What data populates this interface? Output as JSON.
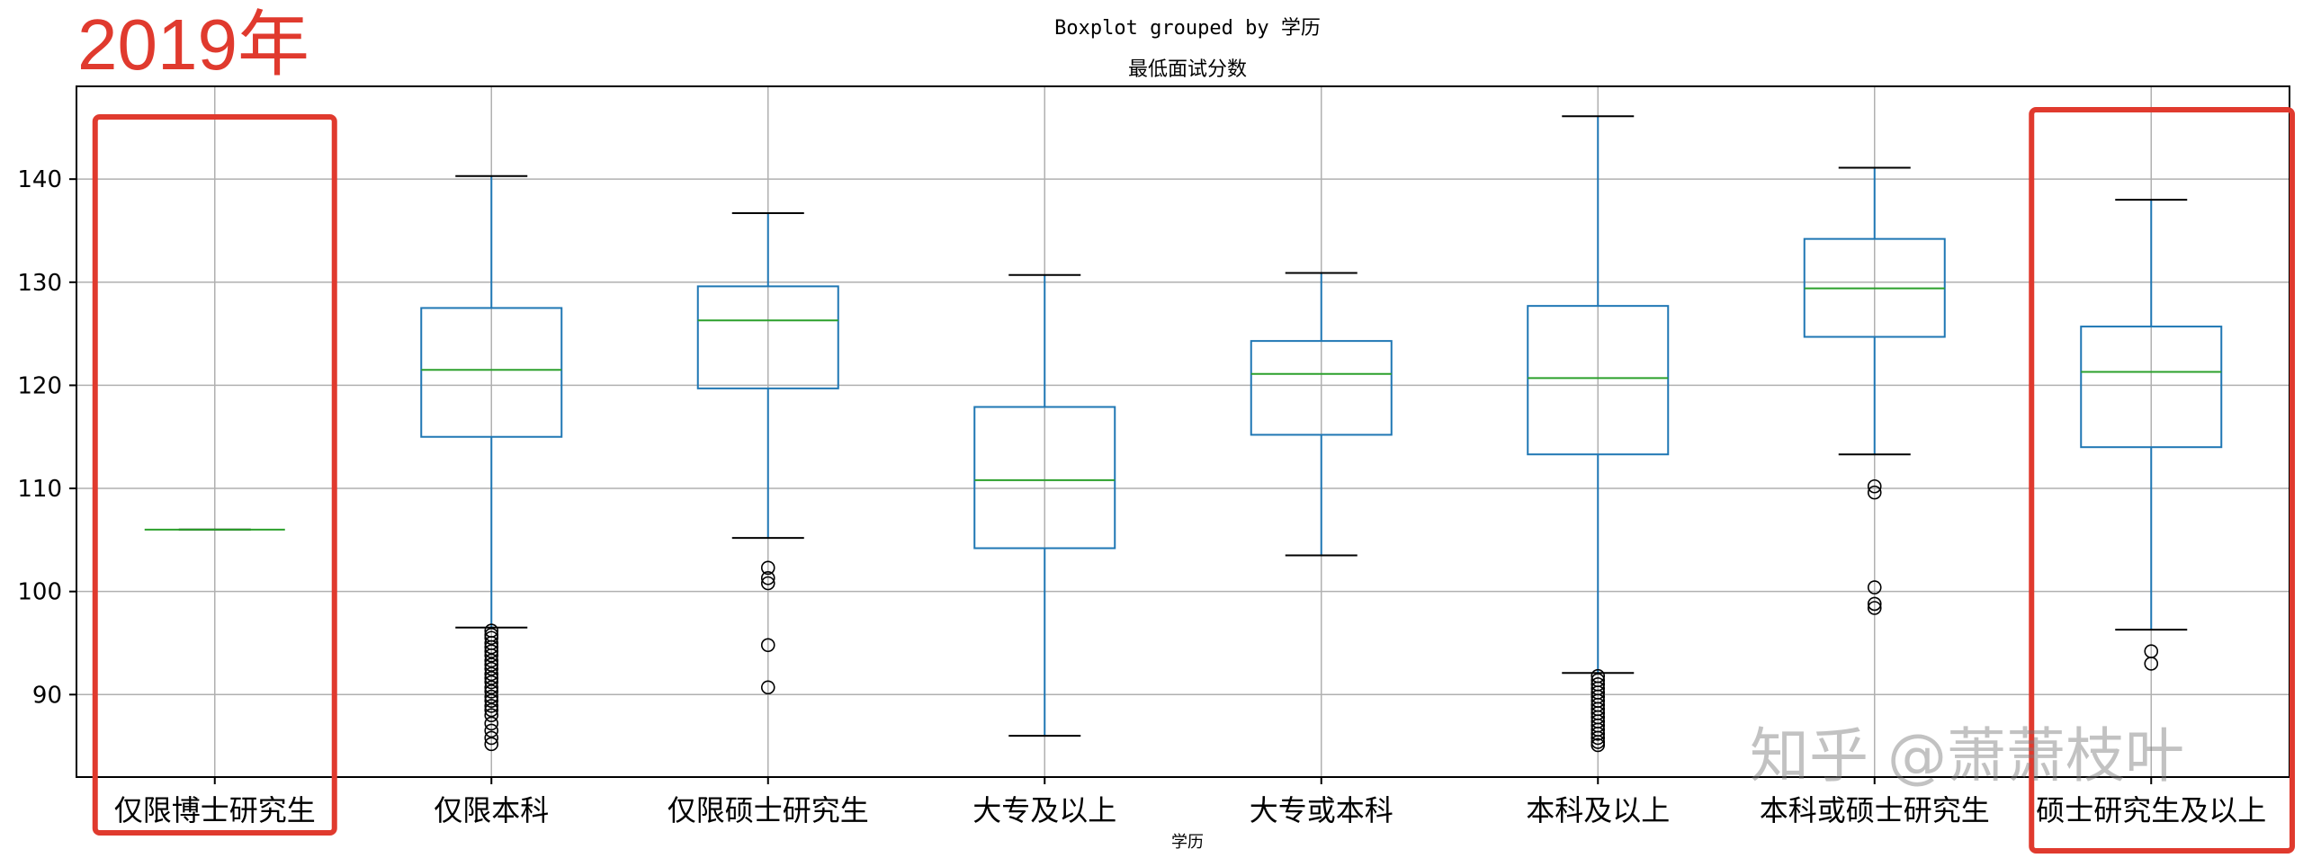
{
  "corner_label": "2019年",
  "watermark": "知乎 @萧萧枝叶",
  "colors": {
    "box": "#1f77b4",
    "median": "#2ca02c",
    "whisker_cap": "#000000",
    "grid": "#b0b0b0",
    "highlight": "#e03a2e"
  },
  "chart_data": {
    "type": "boxplot",
    "title": "Boxplot grouped by 学历",
    "subtitle": "最低面试分数",
    "xlabel": "学历",
    "ylabel": "",
    "ylim": [
      82,
      149
    ],
    "yticks": [
      90,
      100,
      110,
      120,
      130,
      140
    ],
    "grid": true,
    "highlighted_categories": [
      "仅限博士研究生",
      "硕士研究生及以上"
    ],
    "categories": [
      "仅限博士研究生",
      "仅限本科",
      "仅限硕士研究生",
      "大专及以上",
      "大专或本科",
      "本科及以上",
      "本科或硕士研究生",
      "硕士研究生及以上"
    ],
    "boxes": [
      {
        "name": "仅限博士研究生",
        "whislo": 106,
        "q1": 106,
        "med": 106,
        "q3": 106,
        "whishi": 106,
        "fliers": []
      },
      {
        "name": "仅限本科",
        "whislo": 96.5,
        "q1": 115,
        "med": 121.5,
        "q3": 127.5,
        "whishi": 140.3,
        "fliers": [
          96.2,
          95.8,
          95.5,
          95,
          94.6,
          94.2,
          93.8,
          93.3,
          92.9,
          92.5,
          92,
          91.6,
          91.2,
          90.7,
          90.3,
          89.8,
          89.4,
          88.9,
          88.5,
          88,
          87.2,
          86.5,
          85.8,
          85.2
        ]
      },
      {
        "name": "仅限硕士研究生",
        "whislo": 105.2,
        "q1": 119.7,
        "med": 126.3,
        "q3": 129.6,
        "whishi": 136.7,
        "fliers": [
          102.3,
          101.3,
          100.8,
          94.8,
          90.7
        ]
      },
      {
        "name": "大专及以上",
        "whislo": 86,
        "q1": 104.2,
        "med": 110.8,
        "q3": 117.9,
        "whishi": 130.7,
        "fliers": []
      },
      {
        "name": "大专或本科",
        "whislo": 103.5,
        "q1": 115.2,
        "med": 121.1,
        "q3": 124.3,
        "whishi": 130.9,
        "fliers": []
      },
      {
        "name": "本科及以上",
        "whislo": 92.1,
        "q1": 113.3,
        "med": 120.7,
        "q3": 127.7,
        "whishi": 146.1,
        "fliers": [
          91.8,
          91.4,
          91,
          90.6,
          90.2,
          89.8,
          89.4,
          89,
          88.6,
          88.2,
          87.8,
          87.4,
          87,
          86.6,
          86.2,
          85.8,
          85.4,
          85.1
        ]
      },
      {
        "name": "本科或硕士研究生",
        "whislo": 113.3,
        "q1": 124.7,
        "med": 129.4,
        "q3": 134.2,
        "whishi": 141.1,
        "fliers": [
          110.2,
          109.6,
          100.4,
          98.8,
          98.4
        ]
      },
      {
        "name": "硕士研究生及以上",
        "whislo": 96.3,
        "q1": 114,
        "med": 121.3,
        "q3": 125.7,
        "whishi": 138,
        "fliers": [
          94.2,
          93
        ]
      }
    ]
  }
}
